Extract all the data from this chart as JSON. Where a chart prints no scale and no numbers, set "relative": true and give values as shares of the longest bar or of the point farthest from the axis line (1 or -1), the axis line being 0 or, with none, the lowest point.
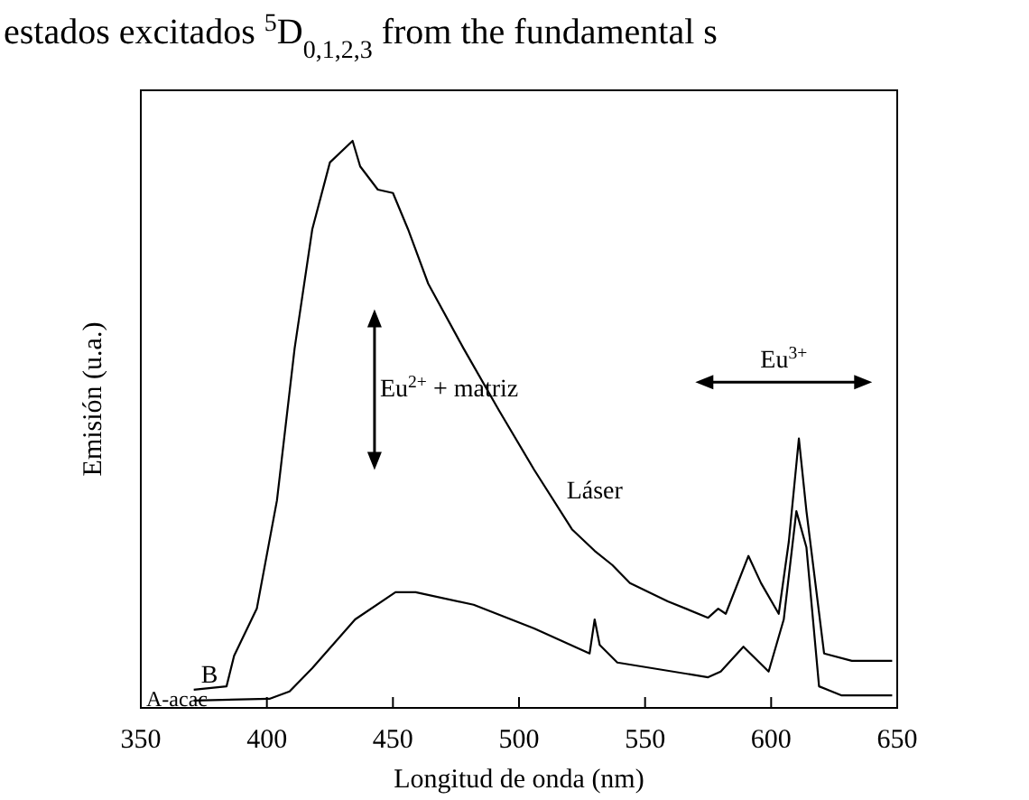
{
  "chart_data": {
    "type": "line",
    "relative": true,
    "xlabel": "Longitud de onda (nm)",
    "ylabel": "Emisión (u.a.)",
    "xlim": [
      350,
      650
    ],
    "xticks": [
      350,
      400,
      450,
      500,
      550,
      600,
      650
    ],
    "marker": "none",
    "line_style": "solid",
    "series": [
      {
        "name": "B",
        "color": "#000000",
        "x": [
          371,
          384,
          387,
          396,
          404,
          411,
          418,
          425,
          434,
          437,
          444,
          450,
          456,
          464,
          478,
          492,
          506,
          521,
          530,
          537,
          544,
          559,
          575,
          579,
          582,
          591,
          596,
          603,
          607,
          611,
          614,
          621,
          632,
          648
        ],
        "values": [
          0.032,
          0.038,
          0.092,
          0.175,
          0.366,
          0.634,
          0.844,
          0.962,
          1,
          0.955,
          0.914,
          0.908,
          0.844,
          0.748,
          0.634,
          0.525,
          0.42,
          0.315,
          0.277,
          0.252,
          0.22,
          0.188,
          0.159,
          0.175,
          0.166,
          0.268,
          0.22,
          0.166,
          0.293,
          0.475,
          0.347,
          0.096,
          0.083,
          0.083
        ]
      },
      {
        "name": "A-acac",
        "color": "#000000",
        "x": [
          371,
          401,
          409,
          418,
          435,
          451,
          459,
          482,
          506,
          528,
          530,
          532,
          539,
          575,
          580,
          589,
          599,
          605,
          610,
          614,
          619,
          628,
          648
        ],
        "values": [
          0.013,
          0.016,
          0.029,
          0.07,
          0.156,
          0.204,
          0.204,
          0.182,
          0.14,
          0.096,
          0.156,
          0.111,
          0.08,
          0.054,
          0.064,
          0.108,
          0.064,
          0.156,
          0.347,
          0.283,
          0.038,
          0.022,
          0.022
        ]
      }
    ],
    "annotations": [
      "Eu$^{2+}$ + matriz",
      "Láser",
      "Eu$^{3+}$",
      "estados excitados $^{5}$D$_{0,1,2,3}$          from the fundamental s"
    ]
  }
}
